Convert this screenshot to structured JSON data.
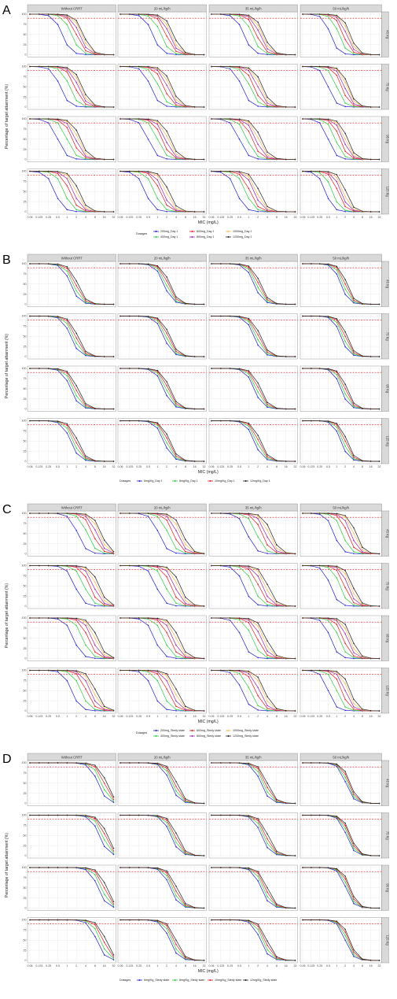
{
  "figure": {
    "panel_letters": [
      "A",
      "B",
      "C",
      "D"
    ],
    "column_strips": [
      "Without CRRT",
      "20 mL/kg/h",
      "35 mL/kg/h",
      "50 mL/kg/h"
    ],
    "row_strips": [
      "45 Kg",
      "75 Kg",
      "95 Kg",
      "125 Kg"
    ],
    "xlabel": "MIC (mg/L)",
    "ylabel": "Percentage of target attainment (%)",
    "x_ticks": [
      "0.06",
      "0.125",
      "0.25",
      "0.5",
      "1",
      "2",
      "4",
      "8",
      "16",
      "32"
    ],
    "y_ticks": [
      "0",
      "25",
      "50",
      "75",
      "100"
    ],
    "legend_title": "Dosages",
    "target_line": 90,
    "colors": {
      "grid": "#ebebeb",
      "panel_border": "#7f7f7f",
      "strip_bg": "#d9d9d9",
      "target_line": "#e31a1c",
      "series": [
        "#1f1fd1",
        "#2ecc40",
        "#e31a1c",
        "#ffb74d",
        "#9c27b0",
        "#222222"
      ]
    }
  },
  "chart_data": [
    {
      "panel": "A",
      "type": "line",
      "x": [
        0.06,
        0.125,
        0.25,
        0.5,
        1,
        2,
        4,
        8,
        16,
        32
      ],
      "legend": [
        "200mg_Day 1",
        "400mg_Day 1",
        "600mg_Day 1",
        "800mg_Day 1",
        "1000mg_Day 1",
        "1200mg_Day 1"
      ],
      "series_colors": [
        "#1f1fd1",
        "#2ecc40",
        "#e31a1c",
        "#9c27b0",
        "#ffb74d",
        "#222222"
      ],
      "mic50_by_row_col": [
        [
          [
            0.7,
            1.4,
            2,
            2.5,
            3,
            3.4
          ],
          [
            0.7,
            1.3,
            1.9,
            2.4,
            2.8,
            3.3
          ],
          [
            0.7,
            1.3,
            1.8,
            2.3,
            2.7,
            3.1
          ],
          [
            0.6,
            1.2,
            1.7,
            2.2,
            2.6,
            3
          ]
        ],
        [
          [
            0.6,
            1.2,
            1.8,
            2.3,
            2.7,
            3.1
          ],
          [
            0.6,
            1.1,
            1.6,
            2.1,
            2.5,
            2.9
          ],
          [
            0.6,
            1.1,
            1.5,
            2,
            2.4,
            2.8
          ],
          [
            0.5,
            1,
            1.5,
            1.9,
            2.3,
            2.6
          ]
        ],
        [
          [
            0.5,
            1,
            1.5,
            1.9,
            2.3,
            2.7
          ],
          [
            0.5,
            1,
            1.4,
            1.8,
            2.2,
            2.6
          ],
          [
            0.5,
            0.9,
            1.3,
            1.7,
            2.1,
            2.5
          ],
          [
            0.5,
            0.9,
            1.3,
            1.7,
            2,
            2.4
          ]
        ],
        [
          [
            0.4,
            0.8,
            1.2,
            1.6,
            2,
            2.4
          ],
          [
            0.4,
            0.8,
            1.2,
            1.5,
            1.9,
            2.3
          ],
          [
            0.4,
            0.8,
            1.1,
            1.5,
            1.8,
            2.2
          ],
          [
            0.4,
            0.7,
            1.1,
            1.4,
            1.7,
            2.1
          ]
        ]
      ]
    },
    {
      "panel": "B",
      "type": "line",
      "x": [
        0.06,
        0.125,
        0.25,
        0.5,
        1,
        2,
        4,
        8,
        16,
        32
      ],
      "legend": [
        "6mg/Kg_Day 1",
        "8mg/Kg_Day 1",
        "10mg/Kg_Day 1",
        "12mg/Kg_Day 1"
      ],
      "series_colors": [
        "#1f1fd1",
        "#2ecc40",
        "#e31a1c",
        "#222222"
      ],
      "mic50_by_row_col": [
        [
          [
            1.3,
            1.6,
            1.9,
            2.2
          ],
          [
            1.6,
            1.9,
            2.2,
            2.5
          ],
          [
            1.5,
            1.8,
            2.1,
            2.4
          ],
          [
            1.4,
            1.7,
            2,
            2.3
          ]
        ],
        [
          [
            1.3,
            1.6,
            1.9,
            2.2
          ],
          [
            1.6,
            1.9,
            2.2,
            2.5
          ],
          [
            1.5,
            1.8,
            2.1,
            2.4
          ],
          [
            1.4,
            1.7,
            2,
            2.3
          ]
        ],
        [
          [
            1.3,
            1.6,
            1.9,
            2.2
          ],
          [
            1.6,
            1.9,
            2.2,
            2.5
          ],
          [
            1.5,
            1.8,
            2.1,
            2.4
          ],
          [
            1.4,
            1.7,
            2,
            2.3
          ]
        ],
        [
          [
            1.3,
            1.6,
            1.9,
            2.2
          ],
          [
            1.6,
            1.9,
            2.2,
            2.5
          ],
          [
            1.5,
            1.8,
            2.1,
            2.4
          ],
          [
            1.4,
            1.7,
            2,
            2.3
          ]
        ]
      ]
    },
    {
      "panel": "C",
      "type": "line",
      "x": [
        0.06,
        0.125,
        0.25,
        0.5,
        1,
        2,
        4,
        8,
        16,
        32
      ],
      "legend": [
        "200mg_Stedy state",
        "400mg_Stedy state",
        "600mg_Stedy state",
        "800mg_Stedy state",
        "1000mg_Stedy state",
        "1200mg_Stedy state"
      ],
      "series_colors": [
        "#1f1fd1",
        "#2ecc40",
        "#e31a1c",
        "#9c27b0",
        "#ffb74d",
        "#222222"
      ],
      "mic50_by_row_col": [
        [
          [
            2.2,
            4.5,
            6.8,
            9,
            11,
            13
          ],
          [
            1.1,
            2.2,
            3.3,
            4.4,
            5.5,
            6.6
          ],
          [
            0.9,
            1.8,
            2.7,
            3.6,
            4.5,
            5.4
          ],
          [
            0.8,
            1.6,
            2.4,
            3.2,
            4,
            4.8
          ]
        ],
        [
          [
            1.8,
            3.6,
            5.4,
            7.2,
            9,
            10.8
          ],
          [
            0.9,
            1.8,
            2.7,
            3.6,
            4.5,
            5.4
          ],
          [
            0.7,
            1.4,
            2.1,
            2.8,
            3.5,
            4.2
          ],
          [
            0.6,
            1.3,
            1.9,
            2.5,
            3.1,
            3.7
          ]
        ],
        [
          [
            1.6,
            3.2,
            4.8,
            6.4,
            8,
            9.6
          ],
          [
            0.8,
            1.6,
            2.4,
            3.2,
            4,
            4.8
          ],
          [
            0.6,
            1.3,
            1.9,
            2.5,
            3.1,
            3.7
          ],
          [
            0.6,
            1.2,
            1.7,
            2.3,
            2.8,
            3.4
          ]
        ],
        [
          [
            1.4,
            2.8,
            4.2,
            5.6,
            7,
            8.4
          ],
          [
            0.7,
            1.4,
            2.1,
            2.8,
            3.5,
            4.2
          ],
          [
            0.6,
            1.1,
            1.7,
            2.2,
            2.8,
            3.3
          ],
          [
            0.5,
            1,
            1.5,
            2,
            2.5,
            3
          ]
        ]
      ]
    },
    {
      "panel": "D",
      "type": "line",
      "x": [
        0.06,
        0.125,
        0.25,
        0.5,
        1,
        2,
        4,
        8,
        16,
        32
      ],
      "legend": [
        "6mg/Kg_Stedy state",
        "8mg/Kg_Stedy state",
        "10mg/Kg_Stedy state",
        "12mg/Kg_Stedy state"
      ],
      "series_colors": [
        "#1f1fd1",
        "#2ecc40",
        "#e31a1c",
        "#222222"
      ],
      "mic50_by_row_col": [
        [
          [
            10,
            13,
            16,
            19
          ],
          [
            2.6,
            3.1,
            3.6,
            4.2
          ],
          [
            2.5,
            3,
            3.5,
            4
          ],
          [
            2.1,
            2.4,
            2.7,
            3
          ]
        ],
        [
          [
            11,
            14,
            17,
            20
          ],
          [
            2.7,
            3.2,
            3.7,
            4.3
          ],
          [
            2.6,
            3.1,
            3.6,
            4.2
          ],
          [
            2.2,
            2.5,
            2.8,
            3.1
          ]
        ],
        [
          [
            10,
            13,
            16,
            19
          ],
          [
            2.6,
            3.1,
            3.6,
            4.2
          ],
          [
            2.5,
            3,
            3.5,
            4
          ],
          [
            2.1,
            2.4,
            2.7,
            3
          ]
        ],
        [
          [
            9,
            12,
            15,
            18
          ],
          [
            2.5,
            3,
            3.5,
            4
          ],
          [
            2.4,
            2.9,
            3.4,
            3.9
          ],
          [
            2,
            2.3,
            2.6,
            2.9
          ]
        ]
      ]
    }
  ]
}
